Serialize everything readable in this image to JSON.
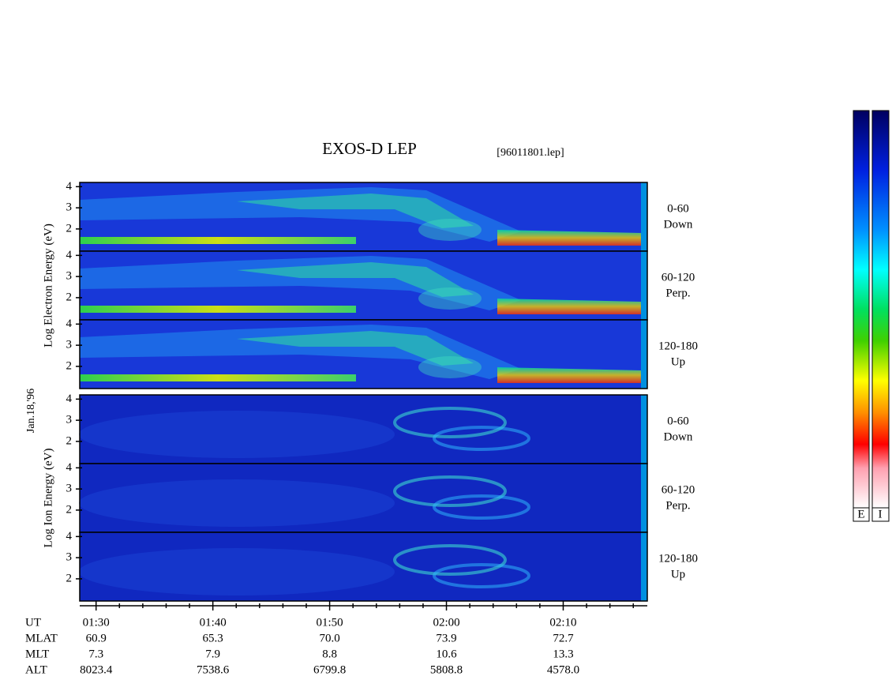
{
  "chart_data": {
    "type": "spectrogram",
    "title": "EXOS-D LEP",
    "file": "[96011801.lep]",
    "date_label": "Jan.18,'96",
    "groups": [
      {
        "ylabel": "Log Electron Energy (eV)",
        "panels": [
          {
            "label": [
              "0-60",
              "Down"
            ]
          },
          {
            "label": [
              "60-120",
              "Perp."
            ]
          },
          {
            "label": [
              "120-180",
              "Up"
            ]
          }
        ]
      },
      {
        "ylabel": "Log Ion Energy (eV)",
        "panels": [
          {
            "label": [
              "0-60",
              "Down"
            ]
          },
          {
            "label": [
              "60-120",
              "Perp."
            ]
          },
          {
            "label": [
              "120-180",
              "Up"
            ]
          }
        ]
      }
    ],
    "ylim": [
      0.95,
      4.2
    ],
    "yticks": [
      2,
      3,
      4
    ],
    "xlim": [
      88.6,
      137.2
    ],
    "xticks": [
      {
        "value": 90,
        "label": "01:30"
      },
      {
        "value": 100,
        "label": "01:40"
      },
      {
        "value": 110,
        "label": "01:50"
      },
      {
        "value": 120,
        "label": "02:00"
      },
      {
        "value": 130,
        "label": "02:10"
      }
    ],
    "xminor_ticks": [
      92,
      94,
      96,
      98,
      102,
      104,
      106,
      108,
      112,
      114,
      116,
      118,
      122,
      124,
      126,
      128,
      132,
      134,
      136
    ],
    "x_row_label": "UT",
    "ephemeris": [
      {
        "name": "MLAT",
        "values": [
          "60.9",
          "65.3",
          "70.0",
          "73.9",
          "72.7"
        ]
      },
      {
        "name": "MLT",
        "values": [
          "7.3",
          "7.9",
          "8.8",
          "10.6",
          "13.3"
        ]
      },
      {
        "name": "ALT",
        "values": [
          "8023.4",
          "7538.6",
          "6799.8",
          "5808.8",
          "4578.0"
        ]
      }
    ],
    "colorbar_labels": [
      "E",
      "I"
    ]
  }
}
